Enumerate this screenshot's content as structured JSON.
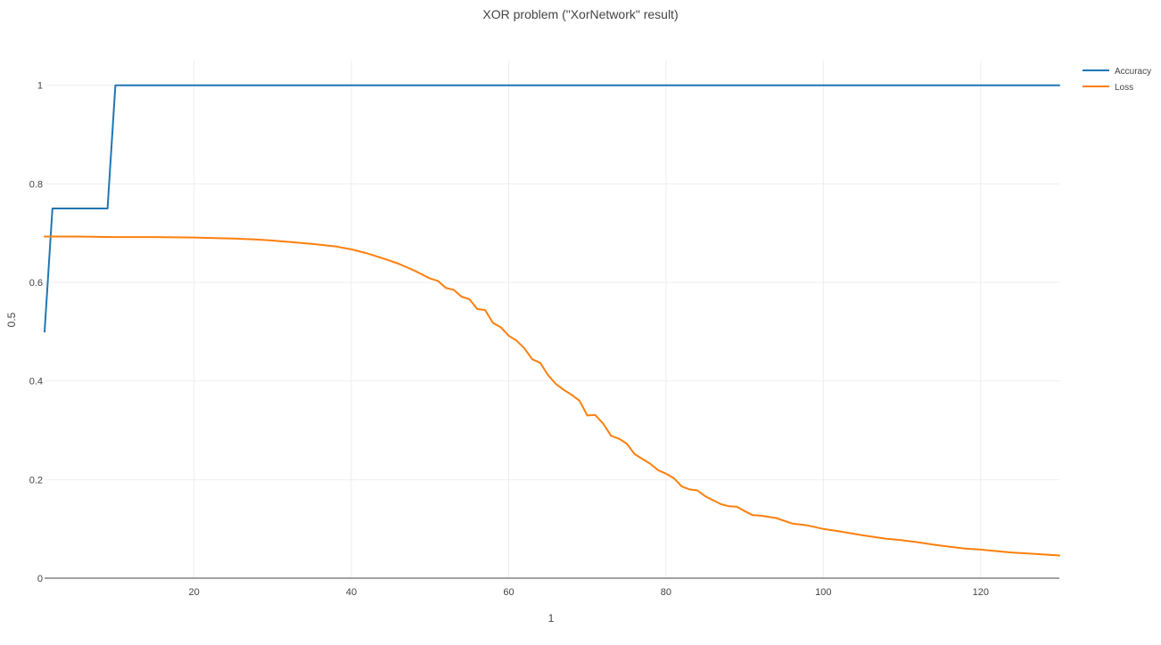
{
  "chart_data": {
    "type": "line",
    "title": "XOR problem (\"XorNetwork\" result)",
    "xlabel": "1",
    "ylabel": "0.5",
    "xlim": [
      1,
      130
    ],
    "ylim": [
      0,
      1.05
    ],
    "x_ticks": [
      "20",
      "40",
      "60",
      "80",
      "100",
      "120"
    ],
    "x_tick_values": [
      20,
      40,
      60,
      80,
      100,
      120
    ],
    "y_ticks": [
      "0",
      "0.2",
      "0.4",
      "0.6",
      "0.8",
      "1"
    ],
    "y_tick_values": [
      0,
      0.2,
      0.4,
      0.6,
      0.8,
      1
    ],
    "grid": true,
    "legend_position": "top-right",
    "series": [
      {
        "name": "Accuracy",
        "color": "#1f77b4",
        "x": [
          1,
          2,
          3,
          9,
          10,
          130
        ],
        "y": [
          0.5,
          0.75,
          0.75,
          0.75,
          1,
          1
        ]
      },
      {
        "name": "Loss",
        "color": "#ff7f0e",
        "x": [
          1,
          5,
          10,
          15,
          20,
          25,
          28,
          30,
          33,
          35,
          38,
          40,
          42,
          44,
          46,
          48,
          50,
          51,
          52,
          53,
          54,
          55,
          56,
          57,
          58,
          59,
          60,
          61,
          62,
          63,
          64,
          65,
          66,
          67,
          68,
          69,
          70,
          71,
          72,
          73,
          74,
          75,
          76,
          77,
          78,
          79,
          80,
          81,
          82,
          83,
          84,
          85,
          86,
          87,
          88,
          89,
          90,
          91,
          92,
          94,
          96,
          98,
          100,
          102,
          105,
          108,
          110,
          112,
          114,
          116,
          118,
          120,
          122,
          124,
          126,
          128,
          130
        ],
        "y": [
          0.693,
          0.693,
          0.692,
          0.692,
          0.691,
          0.689,
          0.687,
          0.685,
          0.681,
          0.678,
          0.673,
          0.667,
          0.659,
          0.649,
          0.638,
          0.624,
          0.608,
          0.603,
          0.589,
          0.585,
          0.571,
          0.566,
          0.546,
          0.544,
          0.518,
          0.509,
          0.492,
          0.482,
          0.466,
          0.444,
          0.437,
          0.412,
          0.394,
          0.382,
          0.372,
          0.36,
          0.33,
          0.331,
          0.314,
          0.289,
          0.283,
          0.273,
          0.252,
          0.242,
          0.232,
          0.219,
          0.212,
          0.203,
          0.186,
          0.18,
          0.178,
          0.166,
          0.158,
          0.15,
          0.146,
          0.145,
          0.136,
          0.128,
          0.127,
          0.122,
          0.111,
          0.107,
          0.1,
          0.095,
          0.087,
          0.08,
          0.077,
          0.073,
          0.068,
          0.064,
          0.06,
          0.058,
          0.055,
          0.052,
          0.05,
          0.048,
          0.046
        ]
      }
    ]
  }
}
